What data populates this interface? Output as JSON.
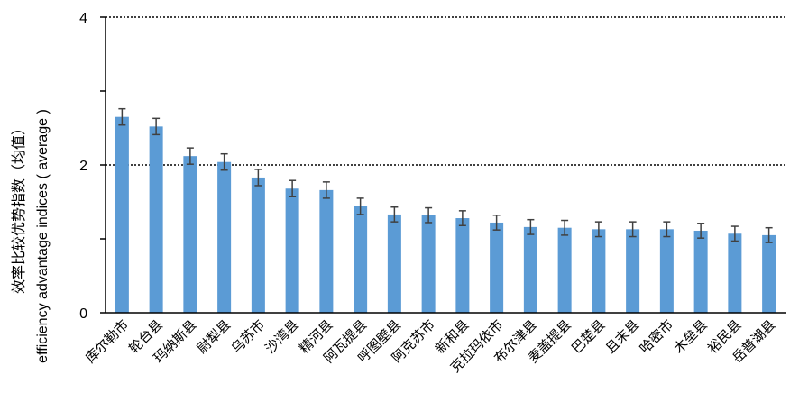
{
  "chart_data": {
    "type": "bar",
    "title": "",
    "xlabel": "",
    "ylabel_cn": "效率比较优势指数（均值）",
    "ylabel_en": "efficiency advantage indices ( average )",
    "ylim": [
      0,
      4
    ],
    "yticks": [
      "0",
      "2",
      "4"
    ],
    "grid": "dotted horizontal at 2 and 4",
    "bar_color": "#5b9bd5",
    "error_color": "#404040",
    "categories": [
      "库尔勒市",
      "轮台县",
      "玛纳斯县",
      "尉犁县",
      "乌苏市",
      "沙湾县",
      "精河县",
      "阿瓦提县",
      "呼图壁县",
      "阿克苏市",
      "新和县",
      "克拉玛依市",
      "布尔津县",
      "麦盖提县",
      "巴楚县",
      "且末县",
      "哈密市",
      "木垒县",
      "裕民县",
      "岳普湖县"
    ],
    "values": [
      2.65,
      2.52,
      2.12,
      2.04,
      1.83,
      1.68,
      1.66,
      1.44,
      1.33,
      1.32,
      1.28,
      1.22,
      1.16,
      1.15,
      1.13,
      1.13,
      1.13,
      1.11,
      1.07,
      1.05
    ],
    "errors": [
      0.11,
      0.11,
      0.11,
      0.11,
      0.11,
      0.11,
      0.11,
      0.11,
      0.1,
      0.1,
      0.1,
      0.1,
      0.1,
      0.1,
      0.1,
      0.1,
      0.1,
      0.1,
      0.1,
      0.1
    ]
  }
}
